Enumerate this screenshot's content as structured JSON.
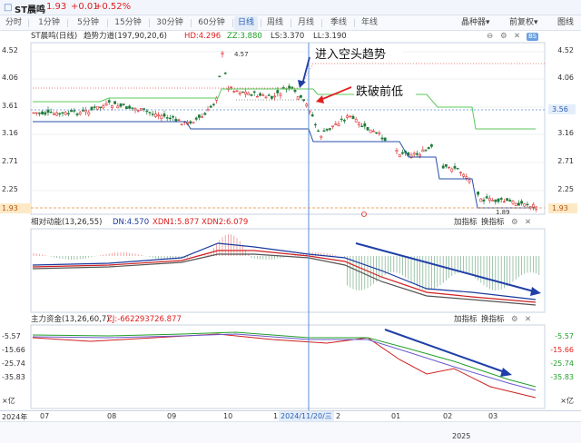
{
  "header": {
    "stock_icon": "□",
    "stock_name": "ST晨鸣",
    "price": "1.93",
    "change": "+0.01",
    "change_pct": "+0.52%"
  },
  "tabs": [
    "分时",
    "1分钟",
    "5分钟",
    "15分钟",
    "30分钟",
    "60分钟",
    "日线",
    "周线",
    "月线",
    "季线",
    "年线"
  ],
  "active_tab": "日线",
  "toolbar": {
    "tools_label": "晶种器▾",
    "restore_label": "前复权▾",
    "more_label": "图线"
  },
  "main_chart": {
    "indicator_name": "ST晨鸣(日线)",
    "indicator_formula": "趋势力道(197,90,20,6)",
    "hd_label": "HD:4.296",
    "zz_label": "ZZ:3.880",
    "ls_label": "LS:3.370",
    "ll_label": "LL:3.190",
    "y_ticks": [
      "4.52",
      "4.06",
      "3.61",
      "3.16",
      "2.71",
      "2.25"
    ],
    "current_price": "1.93",
    "crosshair_right": "3.56",
    "peak_label": "4.57",
    "low_label": "1.89",
    "annotation_1": "进入空头趋势",
    "annotation_2": "跌破前低",
    "badge": "BS"
  },
  "panel_2": {
    "name": "相对动能(13,26,55)",
    "dn_label": "DN:4.570",
    "xdn1_label": "XDN1:5.877",
    "xdn2_label": "XDN2:6.079",
    "add_indicator": "加指标",
    "switch_indicator": "换指标"
  },
  "panel_3": {
    "name": "主力资金(13,26,60,7)",
    "zj_label": "ZJ:-662293726.877",
    "add_indicator": "加指标",
    "switch_indicator": "换指标",
    "y_ticks": [
      "-5.57",
      "-15.66",
      "-25.74",
      "-35.83"
    ],
    "unit": "亿"
  },
  "x_axis": {
    "labels": [
      "2024年",
      "07",
      "08",
      "09",
      "10",
      "1",
      "2024/11/20/三",
      "2",
      "01",
      "02",
      "03"
    ],
    "year_label": "2025"
  },
  "colors": {
    "up": "#e03030",
    "down": "#1f7a3a",
    "accent": "#2a5db0",
    "arrow_blue": "#1f3fa8",
    "arrow_red": "#e02020"
  },
  "icons": [
    "settings-icon",
    "close-icon",
    "up-icon",
    "down-icon",
    "chevron-down-icon"
  ]
}
